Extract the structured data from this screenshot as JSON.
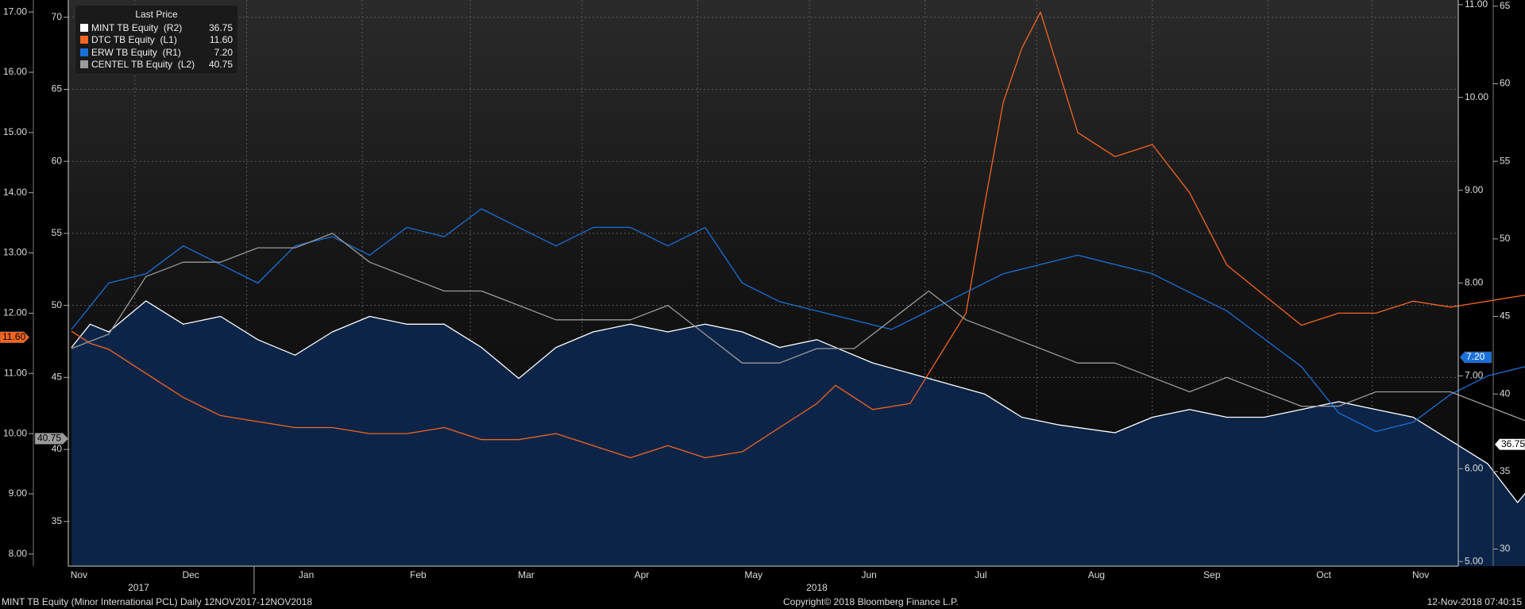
{
  "chart_data": {
    "type": "line",
    "x_start": "2017-11-13",
    "x_end": "2018-11-12",
    "months": [
      {
        "label": "Nov",
        "date": "2017-11-15"
      },
      {
        "label": "Dec",
        "date": "2017-12-15"
      },
      {
        "label": "Jan",
        "date": "2018-01-15"
      },
      {
        "label": "Feb",
        "date": "2018-02-14"
      },
      {
        "label": "Mar",
        "date": "2018-03-15"
      },
      {
        "label": "Apr",
        "date": "2018-04-15"
      },
      {
        "label": "May",
        "date": "2018-05-15"
      },
      {
        "label": "Jun",
        "date": "2018-06-15"
      },
      {
        "label": "Jul",
        "date": "2018-07-15"
      },
      {
        "label": "Aug",
        "date": "2018-08-15"
      },
      {
        "label": "Sep",
        "date": "2018-09-15"
      },
      {
        "label": "Oct",
        "date": "2018-10-15"
      },
      {
        "label": "Nov",
        "date": "2018-11-10"
      }
    ],
    "years": [
      {
        "label": "2017",
        "date": "2017-12-01"
      },
      {
        "label": "2018",
        "date": "2018-06-01"
      }
    ],
    "axes": {
      "L1": {
        "min": 7.8,
        "max": 17.2,
        "ticks": [
          "8.00",
          "9.00",
          "10.00",
          "11.00",
          "12.00",
          "13.00",
          "14.00",
          "15.00",
          "16.00",
          "17.00"
        ]
      },
      "L2": {
        "min": 31.9,
        "max": 71.2,
        "ticks": [
          "35",
          "40",
          "45",
          "50",
          "55",
          "60",
          "65",
          "70"
        ]
      },
      "R1": {
        "min": 4.95,
        "max": 11.05,
        "ticks": [
          "5.00",
          "6.00",
          "7.00",
          "8.00",
          "9.00",
          "10.00",
          "11.00"
        ]
      },
      "R2": {
        "min": 28.9,
        "max": 65.4,
        "ticks": [
          "30",
          "35",
          "40",
          "45",
          "50",
          "55",
          "60",
          "65"
        ]
      }
    },
    "grid": true,
    "legend_title": "Last Price",
    "legend_position": "top-left",
    "series": [
      {
        "name": "MINT TB Equity",
        "axis": "R2",
        "axis_label": "(R2)",
        "last": "36.75",
        "color": "#ffffff",
        "fill": "#0c2447",
        "values": [
          [
            0,
            43
          ],
          [
            5,
            44.5
          ],
          [
            10,
            44
          ],
          [
            20,
            46
          ],
          [
            30,
            44.5
          ],
          [
            40,
            45
          ],
          [
            50,
            43.5
          ],
          [
            60,
            42.5
          ],
          [
            70,
            44
          ],
          [
            80,
            45
          ],
          [
            90,
            44.5
          ],
          [
            100,
            44.5
          ],
          [
            110,
            43
          ],
          [
            120,
            41
          ],
          [
            130,
            43
          ],
          [
            140,
            44
          ],
          [
            150,
            44.5
          ],
          [
            160,
            44
          ],
          [
            170,
            44.5
          ],
          [
            180,
            44
          ],
          [
            190,
            43
          ],
          [
            200,
            43.5
          ],
          [
            215,
            42
          ],
          [
            230,
            41
          ],
          [
            245,
            40
          ],
          [
            255,
            38.5
          ],
          [
            265,
            38
          ],
          [
            280,
            37.5
          ],
          [
            290,
            38.5
          ],
          [
            300,
            39
          ],
          [
            310,
            38.5
          ],
          [
            320,
            38.5
          ],
          [
            330,
            39
          ],
          [
            340,
            39.5
          ],
          [
            350,
            39
          ],
          [
            360,
            38.5
          ],
          [
            370,
            37
          ],
          [
            380,
            35.5
          ],
          [
            388,
            33
          ],
          [
            395,
            35
          ],
          [
            405,
            35
          ],
          [
            415,
            34
          ],
          [
            425,
            33
          ],
          [
            435,
            32.5
          ],
          [
            445,
            33
          ],
          [
            455,
            33
          ],
          [
            465,
            33
          ],
          [
            475,
            35
          ],
          [
            485,
            37.5
          ],
          [
            495,
            39.5
          ],
          [
            505,
            39.5
          ],
          [
            515,
            39
          ],
          [
            525,
            39.5
          ],
          [
            535,
            40
          ],
          [
            545,
            40.5
          ],
          [
            555,
            41.5
          ],
          [
            560,
            41
          ],
          [
            570,
            40.5
          ],
          [
            580,
            39
          ],
          [
            590,
            38
          ],
          [
            600,
            37.5
          ],
          [
            610,
            37.5
          ],
          [
            620,
            37
          ],
          [
            627,
            36.75
          ]
        ]
      },
      {
        "name": "DTC TB Equity",
        "axis": "L1",
        "axis_label": "(L1)",
        "last": "11.60",
        "color": "#f26522",
        "values": [
          [
            0,
            11.7
          ],
          [
            5,
            11.5
          ],
          [
            10,
            11.4
          ],
          [
            20,
            11.0
          ],
          [
            30,
            10.6
          ],
          [
            40,
            10.3
          ],
          [
            50,
            10.2
          ],
          [
            60,
            10.1
          ],
          [
            70,
            10.1
          ],
          [
            80,
            10.0
          ],
          [
            90,
            10.0
          ],
          [
            100,
            10.1
          ],
          [
            110,
            9.9
          ],
          [
            120,
            9.9
          ],
          [
            130,
            10.0
          ],
          [
            140,
            9.8
          ],
          [
            150,
            9.6
          ],
          [
            160,
            9.8
          ],
          [
            170,
            9.6
          ],
          [
            180,
            9.7
          ],
          [
            190,
            10.1
          ],
          [
            200,
            10.5
          ],
          [
            205,
            10.8
          ],
          [
            210,
            10.6
          ],
          [
            215,
            10.4
          ],
          [
            225,
            10.5
          ],
          [
            230,
            11.0
          ],
          [
            240,
            12.0
          ],
          [
            245,
            13.8
          ],
          [
            250,
            15.5
          ],
          [
            255,
            16.4
          ],
          [
            260,
            17.0
          ],
          [
            265,
            16.0
          ],
          [
            270,
            15.0
          ],
          [
            280,
            14.6
          ],
          [
            290,
            14.8
          ],
          [
            300,
            14.0
          ],
          [
            310,
            12.8
          ],
          [
            320,
            12.3
          ],
          [
            330,
            11.8
          ],
          [
            340,
            12.0
          ],
          [
            350,
            12.0
          ],
          [
            360,
            12.2
          ],
          [
            370,
            12.1
          ],
          [
            380,
            12.2
          ],
          [
            390,
            12.3
          ],
          [
            400,
            12.0
          ],
          [
            410,
            11.9
          ],
          [
            420,
            11.8
          ],
          [
            430,
            11.9
          ],
          [
            440,
            12.0
          ],
          [
            450,
            12.0
          ],
          [
            460,
            12.2
          ],
          [
            470,
            12.5
          ],
          [
            480,
            12.8
          ],
          [
            490,
            13.0
          ],
          [
            497,
            13.7
          ],
          [
            505,
            13.3
          ],
          [
            515,
            12.5
          ],
          [
            525,
            12.2
          ],
          [
            535,
            11.9
          ],
          [
            545,
            11.4
          ],
          [
            555,
            11.1
          ],
          [
            560,
            11.0
          ],
          [
            570,
            11.3
          ],
          [
            580,
            11.6
          ],
          [
            585,
            11.6
          ]
        ]
      },
      {
        "name": "ERW TB Equity",
        "axis": "R1",
        "axis_label": "(R1)",
        "last": "7.20",
        "color": "#1a6fd8",
        "values": [
          [
            0,
            7.5
          ],
          [
            10,
            8.0
          ],
          [
            20,
            8.1
          ],
          [
            30,
            8.4
          ],
          [
            40,
            8.2
          ],
          [
            50,
            8.0
          ],
          [
            60,
            8.4
          ],
          [
            70,
            8.5
          ],
          [
            80,
            8.3
          ],
          [
            90,
            8.6
          ],
          [
            100,
            8.5
          ],
          [
            110,
            8.8
          ],
          [
            120,
            8.6
          ],
          [
            130,
            8.4
          ],
          [
            140,
            8.6
          ],
          [
            150,
            8.6
          ],
          [
            160,
            8.4
          ],
          [
            170,
            8.6
          ],
          [
            180,
            8.0
          ],
          [
            190,
            7.8
          ],
          [
            200,
            7.7
          ],
          [
            210,
            7.6
          ],
          [
            220,
            7.5
          ],
          [
            230,
            7.7
          ],
          [
            240,
            7.9
          ],
          [
            250,
            8.1
          ],
          [
            260,
            8.2
          ],
          [
            270,
            8.3
          ],
          [
            280,
            8.2
          ],
          [
            290,
            8.1
          ],
          [
            300,
            7.9
          ],
          [
            310,
            7.7
          ],
          [
            320,
            7.4
          ],
          [
            330,
            7.1
          ],
          [
            340,
            6.6
          ],
          [
            350,
            6.4
          ],
          [
            360,
            6.5
          ],
          [
            370,
            6.8
          ],
          [
            380,
            7.0
          ],
          [
            390,
            7.1
          ],
          [
            400,
            7.3
          ],
          [
            410,
            7.4
          ],
          [
            420,
            7.2
          ],
          [
            430,
            7.5
          ],
          [
            440,
            7.8
          ],
          [
            450,
            7.9
          ],
          [
            460,
            7.9
          ],
          [
            470,
            8.1
          ],
          [
            480,
            8.2
          ],
          [
            485,
            8.1
          ],
          [
            490,
            8.3
          ],
          [
            500,
            7.9
          ],
          [
            510,
            7.7
          ],
          [
            520,
            7.6
          ],
          [
            530,
            7.5
          ],
          [
            540,
            7.4
          ],
          [
            550,
            7.2
          ],
          [
            560,
            7.0
          ],
          [
            570,
            7.4
          ],
          [
            580,
            7.5
          ],
          [
            590,
            7.4
          ],
          [
            598,
            7.2
          ]
        ]
      },
      {
        "name": "CENTEL TB Equity",
        "axis": "L2",
        "axis_label": "(L2)",
        "last": "40.75",
        "color": "#9b9b9b",
        "values": [
          [
            0,
            47
          ],
          [
            10,
            48
          ],
          [
            20,
            52
          ],
          [
            30,
            53
          ],
          [
            40,
            53
          ],
          [
            50,
            54
          ],
          [
            60,
            54
          ],
          [
            70,
            55
          ],
          [
            80,
            53
          ],
          [
            90,
            52
          ],
          [
            100,
            51
          ],
          [
            110,
            51
          ],
          [
            120,
            50
          ],
          [
            130,
            49
          ],
          [
            140,
            49
          ],
          [
            150,
            49
          ],
          [
            160,
            50
          ],
          [
            170,
            48
          ],
          [
            180,
            46
          ],
          [
            190,
            46
          ],
          [
            200,
            47
          ],
          [
            210,
            47
          ],
          [
            220,
            49
          ],
          [
            230,
            51
          ],
          [
            240,
            49
          ],
          [
            250,
            48
          ],
          [
            260,
            47
          ],
          [
            270,
            46
          ],
          [
            280,
            46
          ],
          [
            290,
            45
          ],
          [
            300,
            44
          ],
          [
            310,
            45
          ],
          [
            320,
            44
          ],
          [
            330,
            43
          ],
          [
            340,
            43
          ],
          [
            350,
            44
          ],
          [
            360,
            44
          ],
          [
            370,
            44
          ],
          [
            380,
            43
          ],
          [
            390,
            42
          ],
          [
            400,
            41
          ],
          [
            410,
            40
          ],
          [
            420,
            40
          ],
          [
            430,
            41
          ],
          [
            440,
            42
          ],
          [
            450,
            42
          ],
          [
            460,
            40
          ],
          [
            470,
            40
          ],
          [
            480,
            39
          ],
          [
            490,
            40
          ],
          [
            500,
            39
          ],
          [
            510,
            39
          ],
          [
            520,
            40
          ],
          [
            530,
            40
          ],
          [
            540,
            41
          ],
          [
            550,
            42
          ],
          [
            560,
            41
          ],
          [
            570,
            41
          ],
          [
            580,
            40.5
          ],
          [
            587,
            40.75
          ]
        ]
      }
    ]
  },
  "footer": {
    "left": "MINT TB Equity (Minor International PCL)  Daily 12NOV2017-12NOV2018",
    "center": "Copyright© 2018 Bloomberg Finance L.P.",
    "right": "12-Nov-2018 07:40:15"
  }
}
